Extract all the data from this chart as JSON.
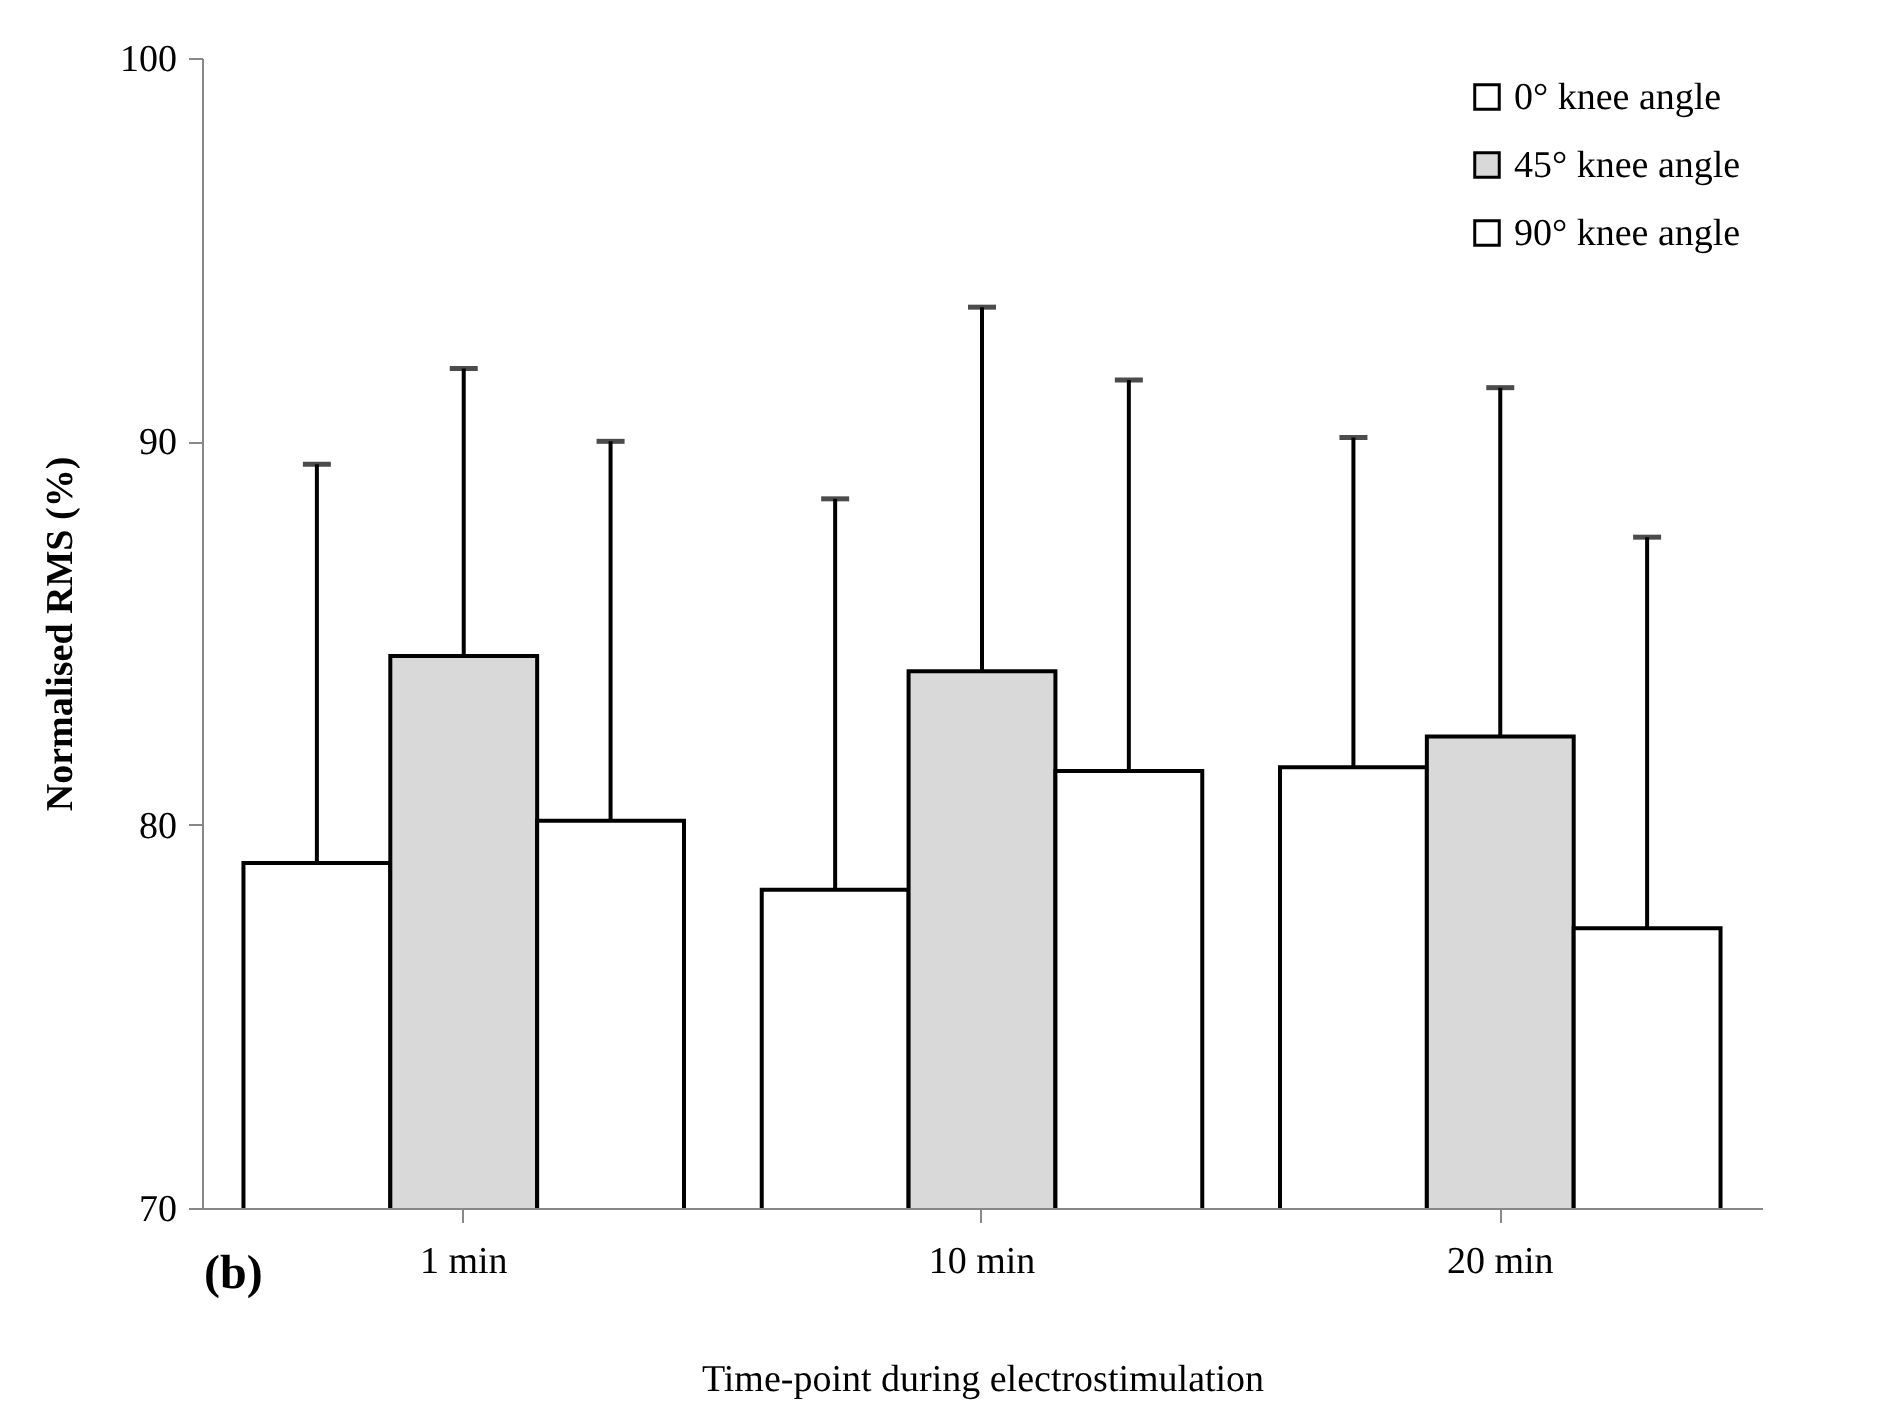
{
  "chart_data": {
    "type": "bar",
    "xlabel": "Time-point during electrostimulation",
    "ylabel": "Normalised RMS (%)",
    "categories": [
      "1 min",
      "10 min",
      "20 min"
    ],
    "series": [
      {
        "name": "0° knee angle",
        "color": "#ffffff",
        "values": [
          79.0,
          78.3,
          81.5
        ],
        "errors": [
          [
            79.0,
            89.4
          ],
          [
            78.3,
            88.5
          ],
          [
            81.5,
            90.1
          ]
        ]
      },
      {
        "name": "45° knee angle",
        "color": "#d9d9d9",
        "values": [
          84.4,
          84.0,
          82.3
        ],
        "errors": [
          [
            84.4,
            91.9
          ],
          [
            84.0,
            93.5
          ],
          [
            82.3,
            91.4
          ]
        ]
      },
      {
        "name": "90° knee angle",
        "color": "#ffffff",
        "values": [
          80.1,
          81.4,
          77.3
        ],
        "errors": [
          [
            80.1,
            90.0
          ],
          [
            81.4,
            91.6
          ],
          [
            77.3,
            87.5
          ]
        ]
      }
    ],
    "ylim": [
      70,
      100
    ],
    "yticks": [
      70,
      80,
      90,
      100
    ],
    "grid": false,
    "legend": "top right",
    "annotations": [
      "(b)"
    ]
  }
}
